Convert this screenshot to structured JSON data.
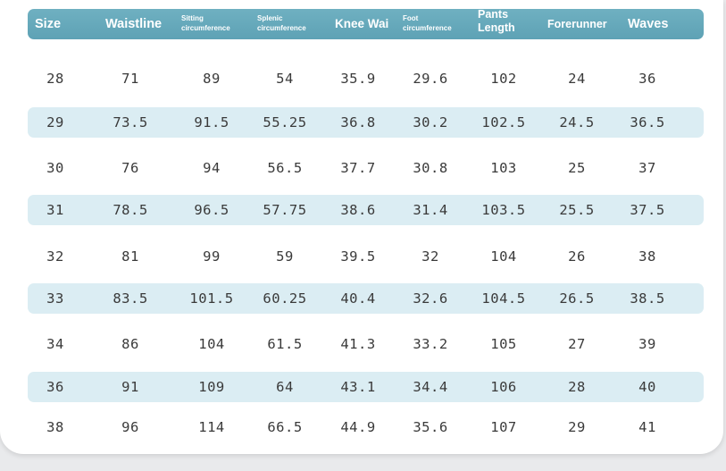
{
  "table": {
    "headers": [
      {
        "key": "size",
        "label": "Size",
        "style": "big"
      },
      {
        "key": "waistline",
        "label": "Waistline",
        "style": "big"
      },
      {
        "key": "sitting",
        "label": "Sitting circumference",
        "style": "small"
      },
      {
        "key": "splenic",
        "label": "Splenic circumference",
        "style": "small"
      },
      {
        "key": "knee",
        "label": "Knee Wai",
        "style": "big"
      },
      {
        "key": "foot",
        "label": "Foot circumference",
        "style": "small"
      },
      {
        "key": "pants",
        "label": "Pants Length",
        "style": "two"
      },
      {
        "key": "forerunner",
        "label": "Forerunner",
        "style": "bigsm"
      },
      {
        "key": "waves",
        "label": "Waves",
        "style": "big"
      }
    ],
    "rows": [
      [
        "28",
        "71",
        "89",
        "54",
        "35.9",
        "29.6",
        "102",
        "24",
        "36"
      ],
      [
        "29",
        "73.5",
        "91.5",
        "55.25",
        "36.8",
        "30.2",
        "102.5",
        "24.5",
        "36.5"
      ],
      [
        "30",
        "76",
        "94",
        "56.5",
        "37.7",
        "30.8",
        "103",
        "25",
        "37"
      ],
      [
        "31",
        "78.5",
        "96.5",
        "57.75",
        "38.6",
        "31.4",
        "103.5",
        "25.5",
        "37.5"
      ],
      [
        "32",
        "81",
        "99",
        "59",
        "39.5",
        "32",
        "104",
        "26",
        "38"
      ],
      [
        "33",
        "83.5",
        "101.5",
        "60.25",
        "40.4",
        "32.6",
        "104.5",
        "26.5",
        "38.5"
      ],
      [
        "34",
        "86",
        "104",
        "61.5",
        "41.3",
        "33.2",
        "105",
        "27",
        "39"
      ],
      [
        "36",
        "91",
        "109",
        "64",
        "43.1",
        "34.4",
        "106",
        "28",
        "40"
      ],
      [
        "38",
        "96",
        "114",
        "66.5",
        "44.9",
        "35.6",
        "107",
        "29",
        "41"
      ]
    ]
  },
  "colors": {
    "header_bg": "#64a8ba",
    "stripe_bg": "#dbedf3",
    "text": "#3a3a3a"
  }
}
